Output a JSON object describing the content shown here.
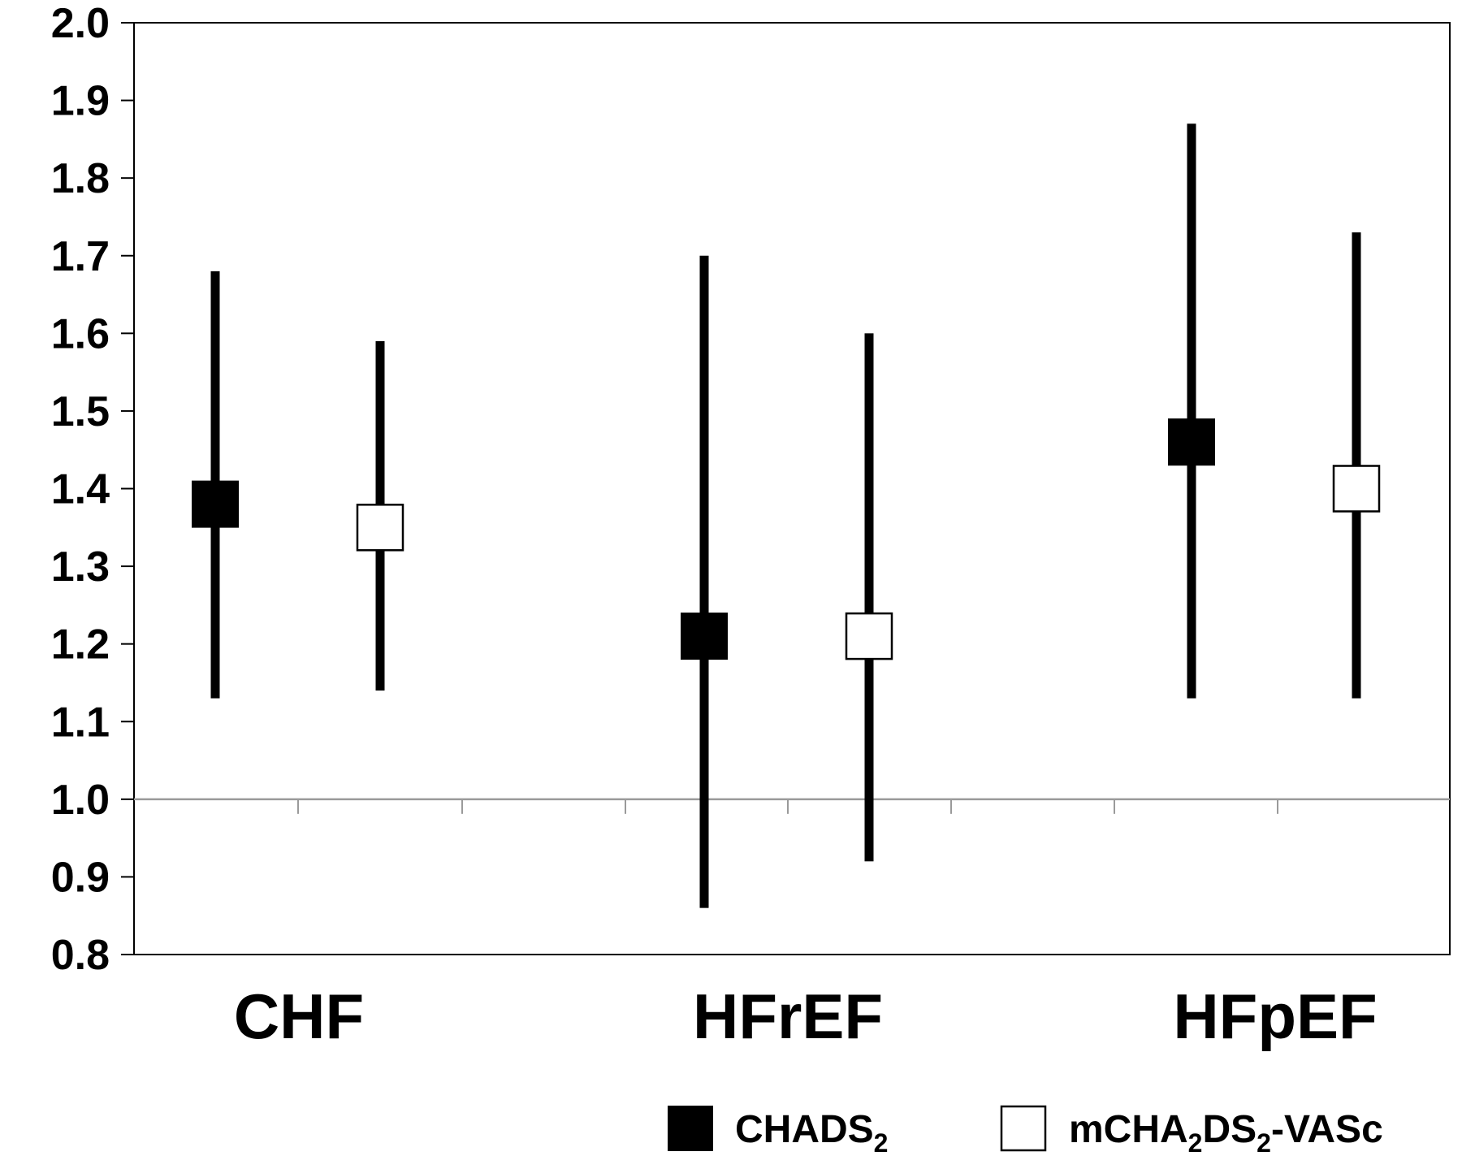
{
  "chart_data": {
    "type": "scatter",
    "categories": [
      "CHF",
      "HFrEF",
      "HFpEF"
    ],
    "series": [
      {
        "name": "CHADS2",
        "marker": "filled-square",
        "color": "#000000",
        "estimates": [
          1.38,
          1.21,
          1.46
        ],
        "lower": [
          1.13,
          0.86,
          1.13
        ],
        "upper": [
          1.68,
          1.7,
          1.87
        ]
      },
      {
        "name": "mCHA2DS2-VASc",
        "marker": "open-square",
        "color": "#ffffff",
        "estimates": [
          1.35,
          1.21,
          1.4
        ],
        "lower": [
          1.14,
          0.92,
          1.13
        ],
        "upper": [
          1.59,
          1.6,
          1.73
        ]
      }
    ],
    "ylim": [
      0.8,
      2.0
    ],
    "yticks": [
      "0.8",
      "0.9",
      "1.0",
      "1.1",
      "1.2",
      "1.3",
      "1.4",
      "1.5",
      "1.6",
      "1.7",
      "1.8",
      "1.9",
      "2.0"
    ],
    "reference_line": 1.0,
    "grid": false,
    "legend_position": "bottom-right",
    "legend": [
      {
        "text": "CHADS",
        "sub": "2",
        "marker": "filled-square"
      },
      {
        "text_parts": [
          {
            "t": "mCHA"
          },
          {
            "t": "2",
            "sub": true
          },
          {
            "t": "DS"
          },
          {
            "t": "2",
            "sub": true
          },
          {
            "t": "-VASc"
          }
        ],
        "marker": "open-square"
      }
    ]
  }
}
